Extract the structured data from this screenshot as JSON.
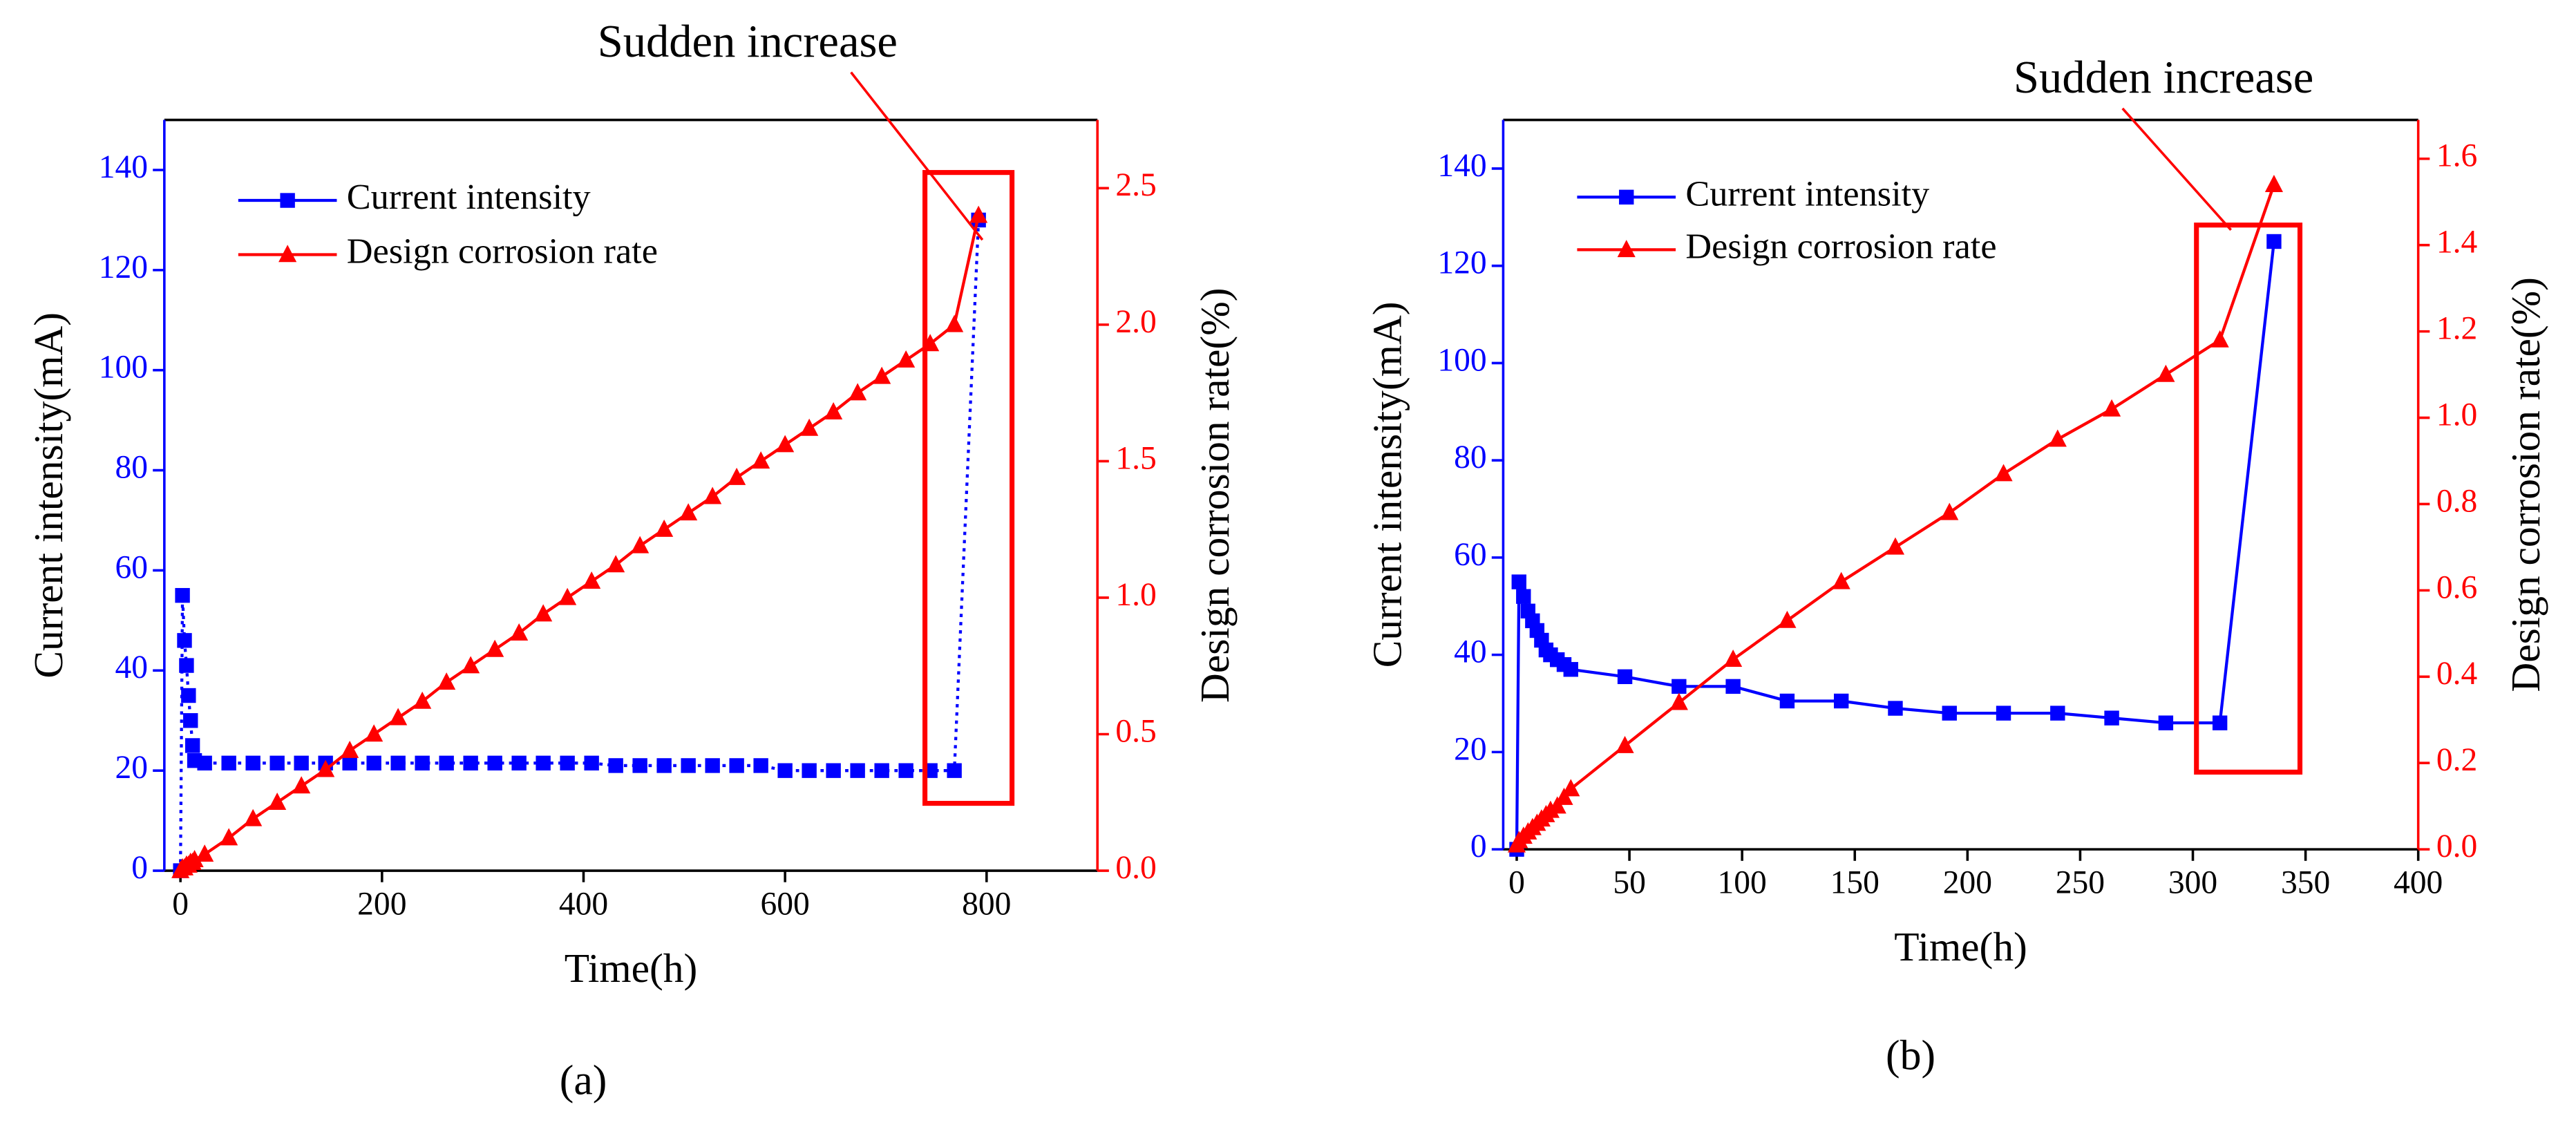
{
  "chart_data": [
    {
      "type": "line",
      "caption": "(a)",
      "annotation": "Sudden increase",
      "x_label": "Time(h)",
      "y_label": "Current intensity(mA)",
      "y2_label": "Design corrosion rate(%)",
      "xlim": [
        -16,
        910
      ],
      "xticks": [
        0,
        200,
        400,
        600,
        800
      ],
      "ylim": [
        0,
        150
      ],
      "yticks": [
        0,
        20,
        40,
        60,
        80,
        100,
        120,
        140
      ],
      "y2lim": [
        0,
        2.75
      ],
      "y2ticks": [
        {
          "value": 0,
          "label": "0.0"
        },
        0.5,
        {
          "value": 1,
          "label": "1.0"
        },
        1.5,
        {
          "value": 2,
          "label": "2.0"
        },
        2.5
      ],
      "x": [
        0,
        2,
        4,
        6,
        8,
        10,
        12,
        14,
        24,
        48,
        72,
        96,
        120,
        144,
        168,
        192,
        216,
        240,
        264,
        288,
        312,
        336,
        360,
        384,
        408,
        432,
        456,
        480,
        504,
        528,
        552,
        576,
        600,
        624,
        648,
        672,
        696,
        720,
        744,
        768,
        792
      ],
      "series": [
        {
          "name": "Current intensity",
          "color": "#0000ff",
          "marker": "square",
          "dashed": true,
          "axis": "y",
          "values": [
            0,
            55,
            46,
            41,
            35,
            30,
            25,
            22,
            21.5,
            21.5,
            21.5,
            21.5,
            21.5,
            21.5,
            21.5,
            21.5,
            21.5,
            21.5,
            21.5,
            21.5,
            21.5,
            21.5,
            21.5,
            21.5,
            21.5,
            21,
            21,
            21,
            21,
            21,
            21,
            21,
            20,
            20,
            20,
            20,
            20,
            20,
            20,
            20,
            130
          ]
        },
        {
          "name": "Design corrosion rate",
          "color": "#ff0000",
          "marker": "triangle",
          "dashed": false,
          "axis": "y2",
          "values": [
            0,
            0.01,
            0.01,
            0.02,
            0.02,
            0.03,
            0.03,
            0.04,
            0.06,
            0.12,
            0.19,
            0.25,
            0.31,
            0.37,
            0.44,
            0.5,
            0.56,
            0.62,
            0.69,
            0.75,
            0.81,
            0.87,
            0.94,
            1.0,
            1.06,
            1.12,
            1.19,
            1.25,
            1.31,
            1.37,
            1.44,
            1.5,
            1.56,
            1.62,
            1.68,
            1.75,
            1.81,
            1.87,
            1.93,
            2.0,
            2.4
          ]
        }
      ]
    },
    {
      "type": "line",
      "caption": "(b)",
      "annotation": "Sudden increase",
      "x_label": "Time(h)",
      "y_label": "Current intensity(mA)",
      "y2_label": "Design corrosion rate(%)",
      "xlim": [
        -6,
        400
      ],
      "xticks": [
        0,
        50,
        100,
        150,
        200,
        250,
        300,
        350,
        400
      ],
      "ylim": [
        0,
        150
      ],
      "yticks": [
        0,
        20,
        40,
        60,
        80,
        100,
        120,
        140
      ],
      "y2lim": [
        0,
        1.69
      ],
      "y2ticks": [
        {
          "value": 0,
          "label": "0.0"
        },
        0.2,
        0.4,
        0.6,
        0.8,
        {
          "value": 1,
          "label": "1.0"
        },
        1.2,
        1.4,
        1.6
      ],
      "x": [
        0,
        1,
        3,
        5,
        7,
        9,
        11,
        13,
        15,
        18,
        21,
        24,
        48,
        72,
        96,
        120,
        144,
        168,
        192,
        216,
        240,
        264,
        288,
        312,
        336
      ],
      "series": [
        {
          "name": "Current intensity",
          "color": "#0000ff",
          "marker": "square",
          "dashed": false,
          "axis": "y",
          "values": [
            0,
            55,
            52,
            49,
            47,
            45,
            43,
            41,
            40,
            39,
            38,
            37,
            35.5,
            33.5,
            33.5,
            30.5,
            30.5,
            29,
            28,
            28,
            28,
            27,
            26,
            26,
            125
          ]
        },
        {
          "name": "Design corrosion rate",
          "color": "#ff0000",
          "marker": "triangle",
          "dashed": false,
          "axis": "y2",
          "values": [
            0.01,
            0.02,
            0.03,
            0.04,
            0.05,
            0.06,
            0.07,
            0.08,
            0.09,
            0.1,
            0.12,
            0.14,
            0.24,
            0.34,
            0.44,
            0.53,
            0.62,
            0.7,
            0.78,
            0.87,
            0.95,
            1.02,
            1.1,
            1.18,
            1.54
          ]
        }
      ]
    }
  ]
}
